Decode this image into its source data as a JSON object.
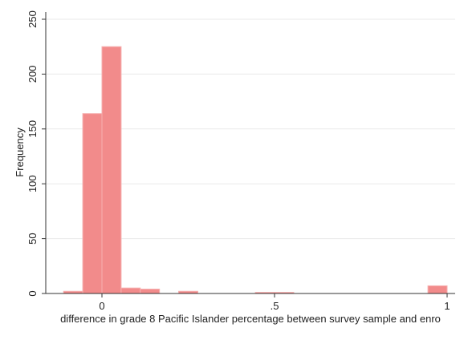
{
  "chart_data": {
    "type": "bar",
    "title": "",
    "xlabel": "difference in grade 8 Pacific Islander percentage between survey sample and enro",
    "ylabel": "Frequency",
    "xlim": [
      -0.1667,
      1.0
    ],
    "ylim": [
      0,
      250
    ],
    "x_ticks": [
      {
        "value": 0,
        "label": "0"
      },
      {
        "value": 0.5,
        "label": ".5"
      },
      {
        "value": 1,
        "label": "1"
      }
    ],
    "y_ticks": [
      {
        "value": 0,
        "label": "0"
      },
      {
        "value": 50,
        "label": "50"
      },
      {
        "value": 100,
        "label": "100"
      },
      {
        "value": 150,
        "label": "150"
      },
      {
        "value": 200,
        "label": "200"
      },
      {
        "value": 250,
        "label": "250"
      }
    ],
    "grid": true,
    "bin_width": 0.0556,
    "bins": [
      {
        "start": -0.1111,
        "value": 2
      },
      {
        "start": -0.0556,
        "value": 164
      },
      {
        "start": 0.0,
        "value": 225
      },
      {
        "start": 0.0556,
        "value": 5
      },
      {
        "start": 0.1111,
        "value": 4
      },
      {
        "start": 0.1667,
        "value": 0
      },
      {
        "start": 0.2222,
        "value": 2
      },
      {
        "start": 0.2778,
        "value": 0
      },
      {
        "start": 0.3333,
        "value": 0
      },
      {
        "start": 0.3889,
        "value": 0
      },
      {
        "start": 0.4444,
        "value": 1
      },
      {
        "start": 0.5,
        "value": 1
      },
      {
        "start": 0.5556,
        "value": 0
      },
      {
        "start": 0.6111,
        "value": 0
      },
      {
        "start": 0.6667,
        "value": 0
      },
      {
        "start": 0.7222,
        "value": 0
      },
      {
        "start": 0.7778,
        "value": 0
      },
      {
        "start": 0.8333,
        "value": 0
      },
      {
        "start": 0.8889,
        "value": 0
      },
      {
        "start": 0.9444,
        "value": 7
      }
    ],
    "colors": {
      "bar_fill": "#f28b8b",
      "bar_stroke": "#f6b0b0",
      "grid": "#eaeaea",
      "axis": "#333333"
    }
  }
}
